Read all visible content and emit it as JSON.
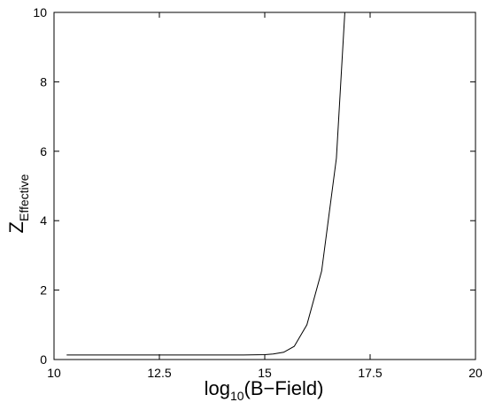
{
  "chart_data": {
    "type": "line",
    "title": "",
    "xlabel": {
      "prefix": "log",
      "subscript": "10",
      "suffix": "(B−Field)"
    },
    "ylabel": {
      "main": "Z",
      "subscript": "Effective"
    },
    "xlim": [
      10,
      20
    ],
    "ylim": [
      0,
      10
    ],
    "x_ticks": [
      10,
      12.5,
      15,
      17.5,
      20
    ],
    "x_tick_labels": [
      "10",
      "12.5",
      "15",
      "17.5",
      "20"
    ],
    "y_ticks": [
      0,
      2,
      4,
      6,
      8,
      10
    ],
    "y_tick_labels": [
      "0",
      "2",
      "4",
      "6",
      "8",
      "10"
    ],
    "grid": false,
    "legend": "none",
    "line_color": "#000000",
    "series": [
      {
        "x": [
          10.3,
          11.0,
          12.0,
          13.0,
          14.0,
          14.5,
          15.0,
          15.2,
          15.45,
          15.7,
          16.0,
          16.35,
          16.7,
          16.9
        ],
        "y": [
          0.13,
          0.13,
          0.13,
          0.13,
          0.13,
          0.13,
          0.14,
          0.16,
          0.21,
          0.38,
          1.0,
          2.55,
          5.8,
          10.0
        ]
      }
    ]
  }
}
